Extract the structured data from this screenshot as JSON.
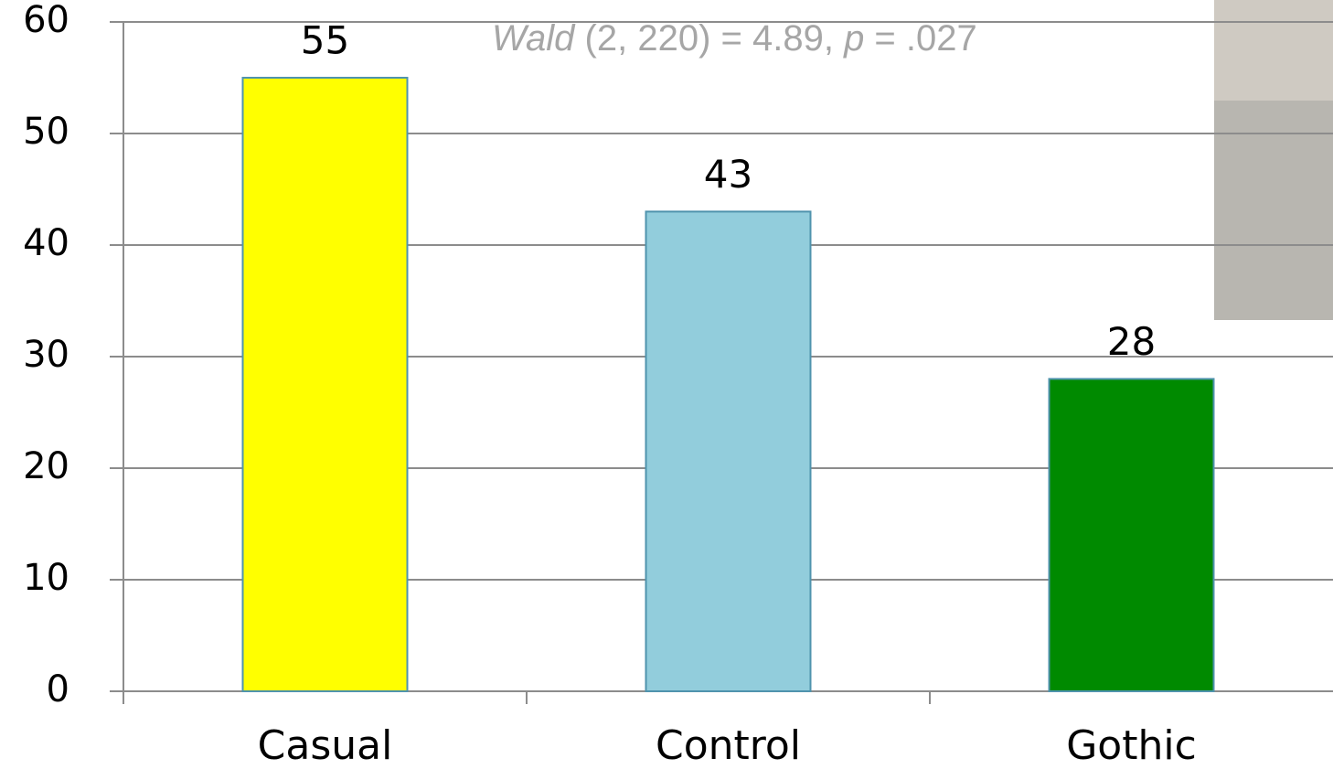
{
  "chart_data": {
    "type": "bar",
    "annotation": [
      "Wald",
      " (2, 220) = 4.89, ",
      "p",
      " = .027"
    ],
    "annotation_italic": [
      true,
      false,
      true,
      false
    ],
    "categories": [
      "Casual",
      "Control",
      "Gothic"
    ],
    "values": [
      55,
      43,
      28
    ],
    "colors": [
      "#ffff00",
      "#92cddc",
      "#008a00"
    ],
    "ylim": [
      0,
      60
    ],
    "yticks": [
      0,
      10,
      20,
      30,
      40,
      50,
      60
    ],
    "grid": true
  }
}
